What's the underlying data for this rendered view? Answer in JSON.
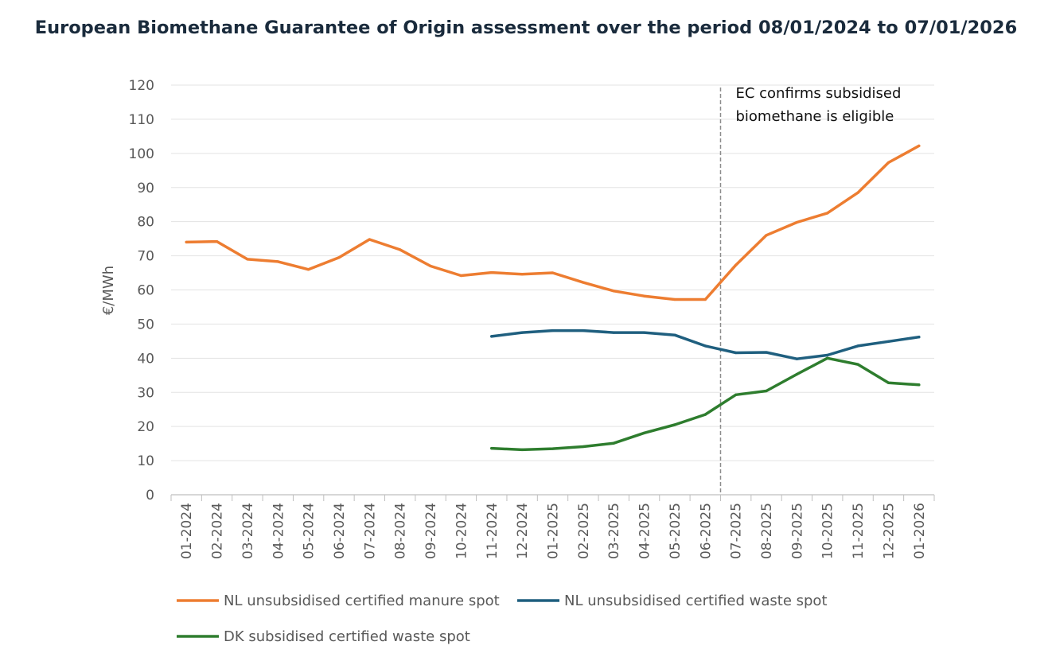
{
  "chart_data": {
    "type": "line",
    "title": "European Biomethane Guarantee of Origin assessment over the period 08/01/2024 to 07/01/2026",
    "xlabel": "",
    "ylabel": "€/MWh",
    "ylim": [
      0,
      120
    ],
    "yticks": [
      0,
      10,
      20,
      30,
      40,
      50,
      60,
      70,
      80,
      90,
      100,
      110,
      120
    ],
    "grid": true,
    "legend_position": "bottom",
    "categories": [
      "01-2024",
      "02-2024",
      "03-2024",
      "04-2024",
      "05-2024",
      "06-2024",
      "07-2024",
      "08-2024",
      "09-2024",
      "10-2024",
      "11-2024",
      "12-2024",
      "01-2025",
      "02-2025",
      "03-2025",
      "04-2025",
      "05-2025",
      "06-2025",
      "07-2025",
      "08-2025",
      "09-2025",
      "10-2025",
      "11-2025",
      "12-2025",
      "01-2026"
    ],
    "series": [
      {
        "name": "NL unsubsidised certified manure spot",
        "color": "#ED7D31",
        "values": [
          74,
          74.2,
          69,
          68.3,
          66,
          69.5,
          74.8,
          71.8,
          67,
          64.2,
          65.1,
          64.6,
          65,
          62.2,
          59.7,
          58.2,
          57.2,
          57.2,
          67.3,
          76,
          79.8,
          82.5,
          88.5,
          97.3,
          102.2
        ]
      },
      {
        "name": "NL unsubsidised certified waste spot",
        "color": "#1F5F7F",
        "values": [
          null,
          null,
          null,
          null,
          null,
          null,
          null,
          null,
          null,
          null,
          46.4,
          47.5,
          48.1,
          48.1,
          47.5,
          47.5,
          46.8,
          43.6,
          41.6,
          41.7,
          39.8,
          40.9,
          43.6,
          44.9,
          46.2
        ]
      },
      {
        "name": "DK subsidised certified waste spot",
        "color": "#2E7D2E",
        "values": [
          null,
          null,
          null,
          null,
          null,
          null,
          null,
          null,
          null,
          null,
          13.6,
          13.2,
          13.5,
          14.1,
          15.1,
          18.1,
          20.5,
          23.5,
          29.3,
          30.4,
          35.3,
          40,
          38.2,
          32.8,
          32.2
        ]
      }
    ],
    "annotations": [
      {
        "line_1": "EC confirms subsidised",
        "line_2": "biomethane is eligible",
        "between_categories": [
          "06-2025",
          "07-2025"
        ],
        "style": "dashed-vertical-line"
      }
    ]
  }
}
